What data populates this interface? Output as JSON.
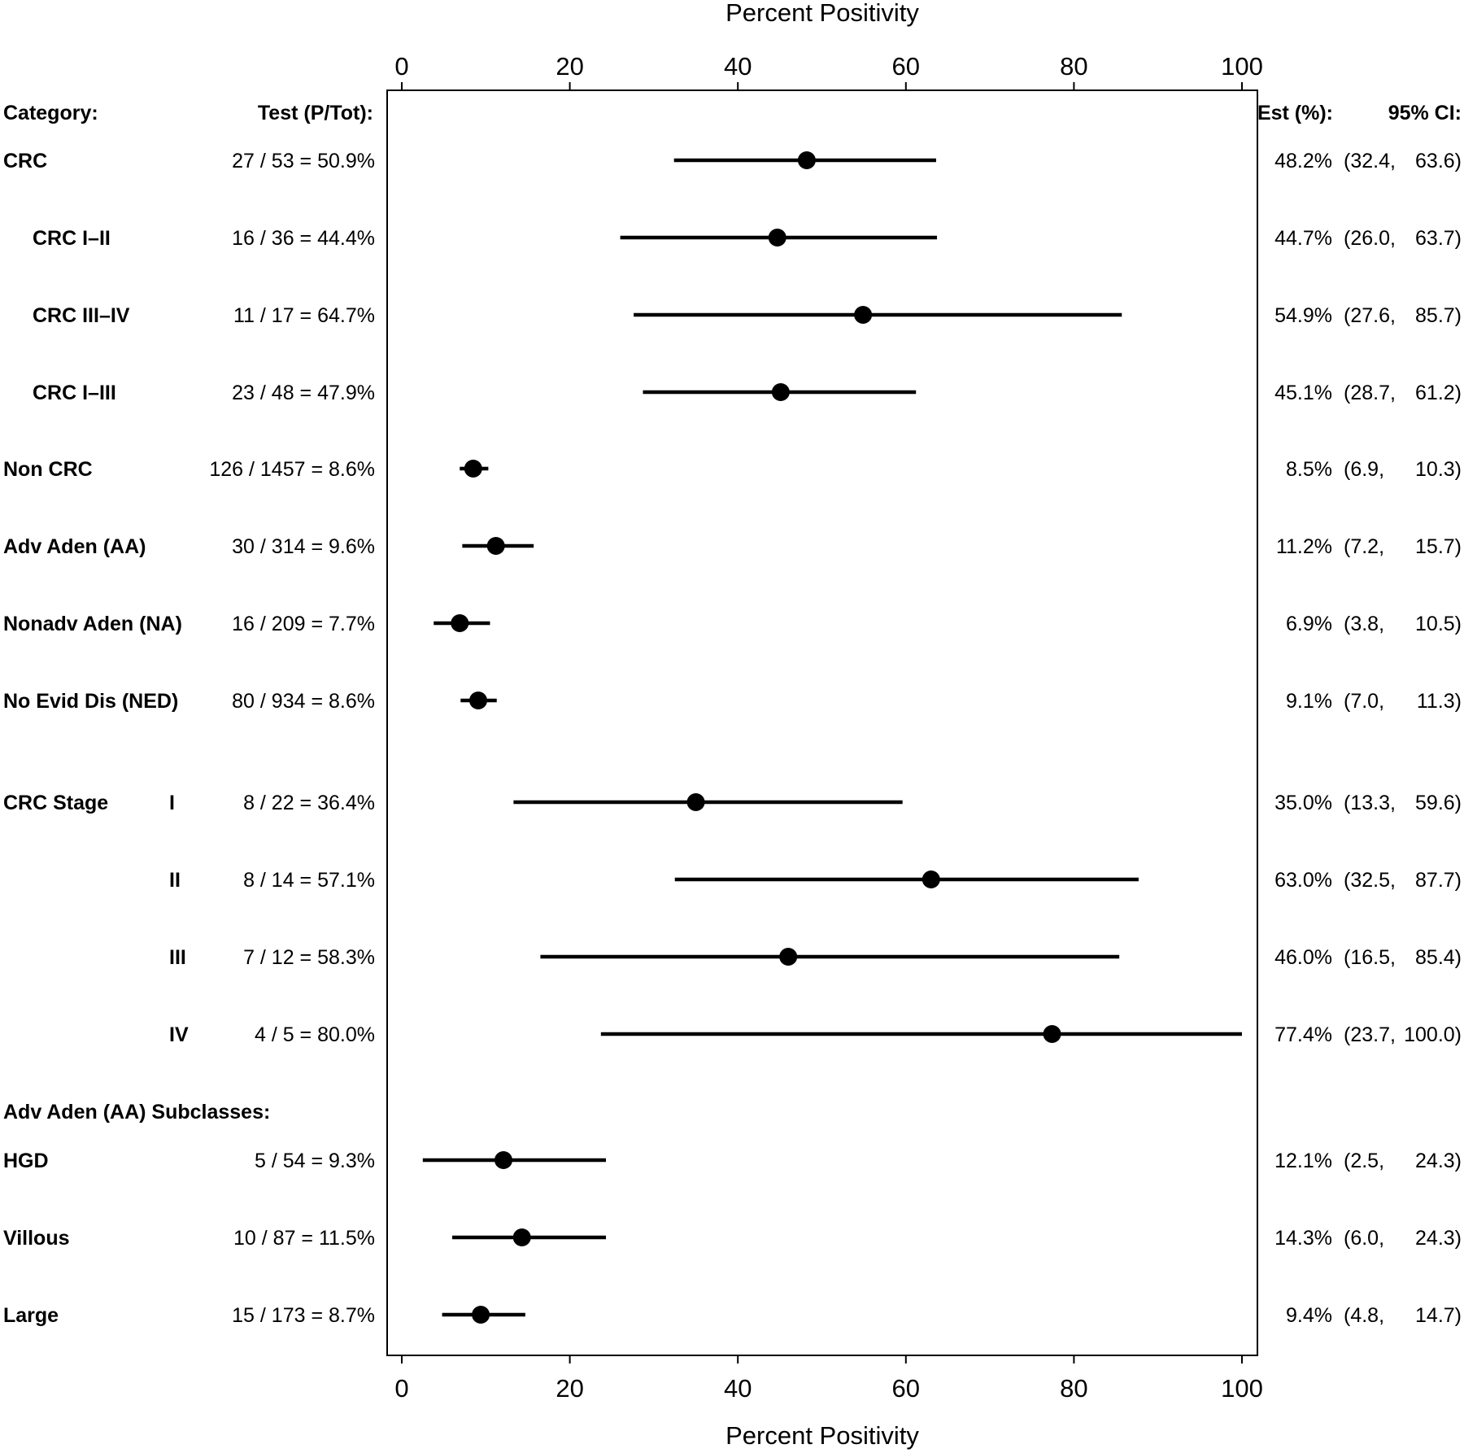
{
  "chart_data": {
    "type": "forest",
    "xlabel": "Percent Positivity",
    "xlim": [
      0,
      100
    ],
    "xticks": [
      "0",
      "20",
      "40",
      "60",
      "80",
      "100"
    ],
    "xtick_values": [
      0,
      20,
      40,
      60,
      80,
      100
    ],
    "headers": {
      "category": "Category:",
      "test": "Test (P/Tot):",
      "est": "Est (%):",
      "ci": "95% CI:"
    },
    "rows": [
      {
        "label": "CRC",
        "indent": false,
        "stage": "",
        "test": "27 / 53 = 50.9%",
        "est": 48.2,
        "lo": 32.4,
        "hi": 63.6,
        "est_text": "48.2%",
        "ci_lo_text": "(32.4,",
        "ci_hi_text": "63.6)"
      },
      {
        "label": "CRC I–II",
        "indent": true,
        "stage": "",
        "test": "16 / 36 = 44.4%",
        "est": 44.7,
        "lo": 26.0,
        "hi": 63.7,
        "est_text": "44.7%",
        "ci_lo_text": "(26.0,",
        "ci_hi_text": "63.7)"
      },
      {
        "label": "CRC III–IV",
        "indent": true,
        "stage": "",
        "test": "11 / 17 = 64.7%",
        "est": 54.9,
        "lo": 27.6,
        "hi": 85.7,
        "est_text": "54.9%",
        "ci_lo_text": "(27.6,",
        "ci_hi_text": "85.7)"
      },
      {
        "label": "CRC I–III",
        "indent": true,
        "stage": "",
        "test": "23 / 48 = 47.9%",
        "est": 45.1,
        "lo": 28.7,
        "hi": 61.2,
        "est_text": "45.1%",
        "ci_lo_text": "(28.7,",
        "ci_hi_text": "61.2)"
      },
      {
        "label": "Non CRC",
        "indent": false,
        "stage": "",
        "test": "126 / 1457 = 8.6%",
        "est": 8.5,
        "lo": 6.9,
        "hi": 10.3,
        "est_text": "8.5%",
        "ci_lo_text": "(6.9,",
        "ci_hi_text": "10.3)"
      },
      {
        "label": "Adv Aden (AA)",
        "indent": false,
        "stage": "",
        "test": "30 / 314 = 9.6%",
        "est": 11.2,
        "lo": 7.2,
        "hi": 15.7,
        "est_text": "11.2%",
        "ci_lo_text": "(7.2,",
        "ci_hi_text": "15.7)"
      },
      {
        "label": "Nonadv Aden (NA)",
        "indent": false,
        "stage": "",
        "test": "16 / 209 = 7.7%",
        "est": 6.9,
        "lo": 3.8,
        "hi": 10.5,
        "est_text": "6.9%",
        "ci_lo_text": "(3.8,",
        "ci_hi_text": "10.5)"
      },
      {
        "label": "No Evid Dis (NED)",
        "indent": false,
        "stage": "",
        "test": "80 / 934 = 8.6%",
        "est": 9.1,
        "lo": 7.0,
        "hi": 11.3,
        "est_text": "9.1%",
        "ci_lo_text": "(7.0,",
        "ci_hi_text": "11.3)"
      },
      {
        "label": "CRC Stage",
        "indent": false,
        "stage": "I",
        "test": "8 / 22 = 36.4%",
        "est": 35.0,
        "lo": 13.3,
        "hi": 59.6,
        "est_text": "35.0%",
        "ci_lo_text": "(13.3,",
        "ci_hi_text": "59.6)"
      },
      {
        "label": "",
        "indent": false,
        "stage": "II",
        "test": "8 / 14 = 57.1%",
        "est": 63.0,
        "lo": 32.5,
        "hi": 87.7,
        "est_text": "63.0%",
        "ci_lo_text": "(32.5,",
        "ci_hi_text": "87.7)"
      },
      {
        "label": "",
        "indent": false,
        "stage": "III",
        "test": "7 / 12 = 58.3%",
        "est": 46.0,
        "lo": 16.5,
        "hi": 85.4,
        "est_text": "46.0%",
        "ci_lo_text": "(16.5,",
        "ci_hi_text": "85.4)"
      },
      {
        "label": "",
        "indent": false,
        "stage": "IV",
        "test": "4 / 5 = 80.0%",
        "est": 77.4,
        "lo": 23.7,
        "hi": 100.0,
        "est_text": "77.4%",
        "ci_lo_text": "(23.7,",
        "ci_hi_text": "100.0)"
      },
      {
        "label": "HGD",
        "indent": false,
        "stage": "",
        "test": "5 / 54 = 9.3%",
        "est": 12.1,
        "lo": 2.5,
        "hi": 24.3,
        "est_text": "12.1%",
        "ci_lo_text": "(2.5,",
        "ci_hi_text": "24.3)"
      },
      {
        "label": "Villous",
        "indent": false,
        "stage": "",
        "test": "10 / 87 = 11.5%",
        "est": 14.3,
        "lo": 6.0,
        "hi": 24.3,
        "est_text": "14.3%",
        "ci_lo_text": "(6.0,",
        "ci_hi_text": "24.3)"
      },
      {
        "label": "Large",
        "indent": false,
        "stage": "",
        "test": "15 / 173 = 8.7%",
        "est": 9.4,
        "lo": 4.8,
        "hi": 14.7,
        "est_text": "9.4%",
        "ci_lo_text": "(4.8,",
        "ci_hi_text": "14.7)"
      }
    ],
    "section_label": "Adv Aden (AA) Subclasses:",
    "grid": false,
    "legend": "none"
  }
}
